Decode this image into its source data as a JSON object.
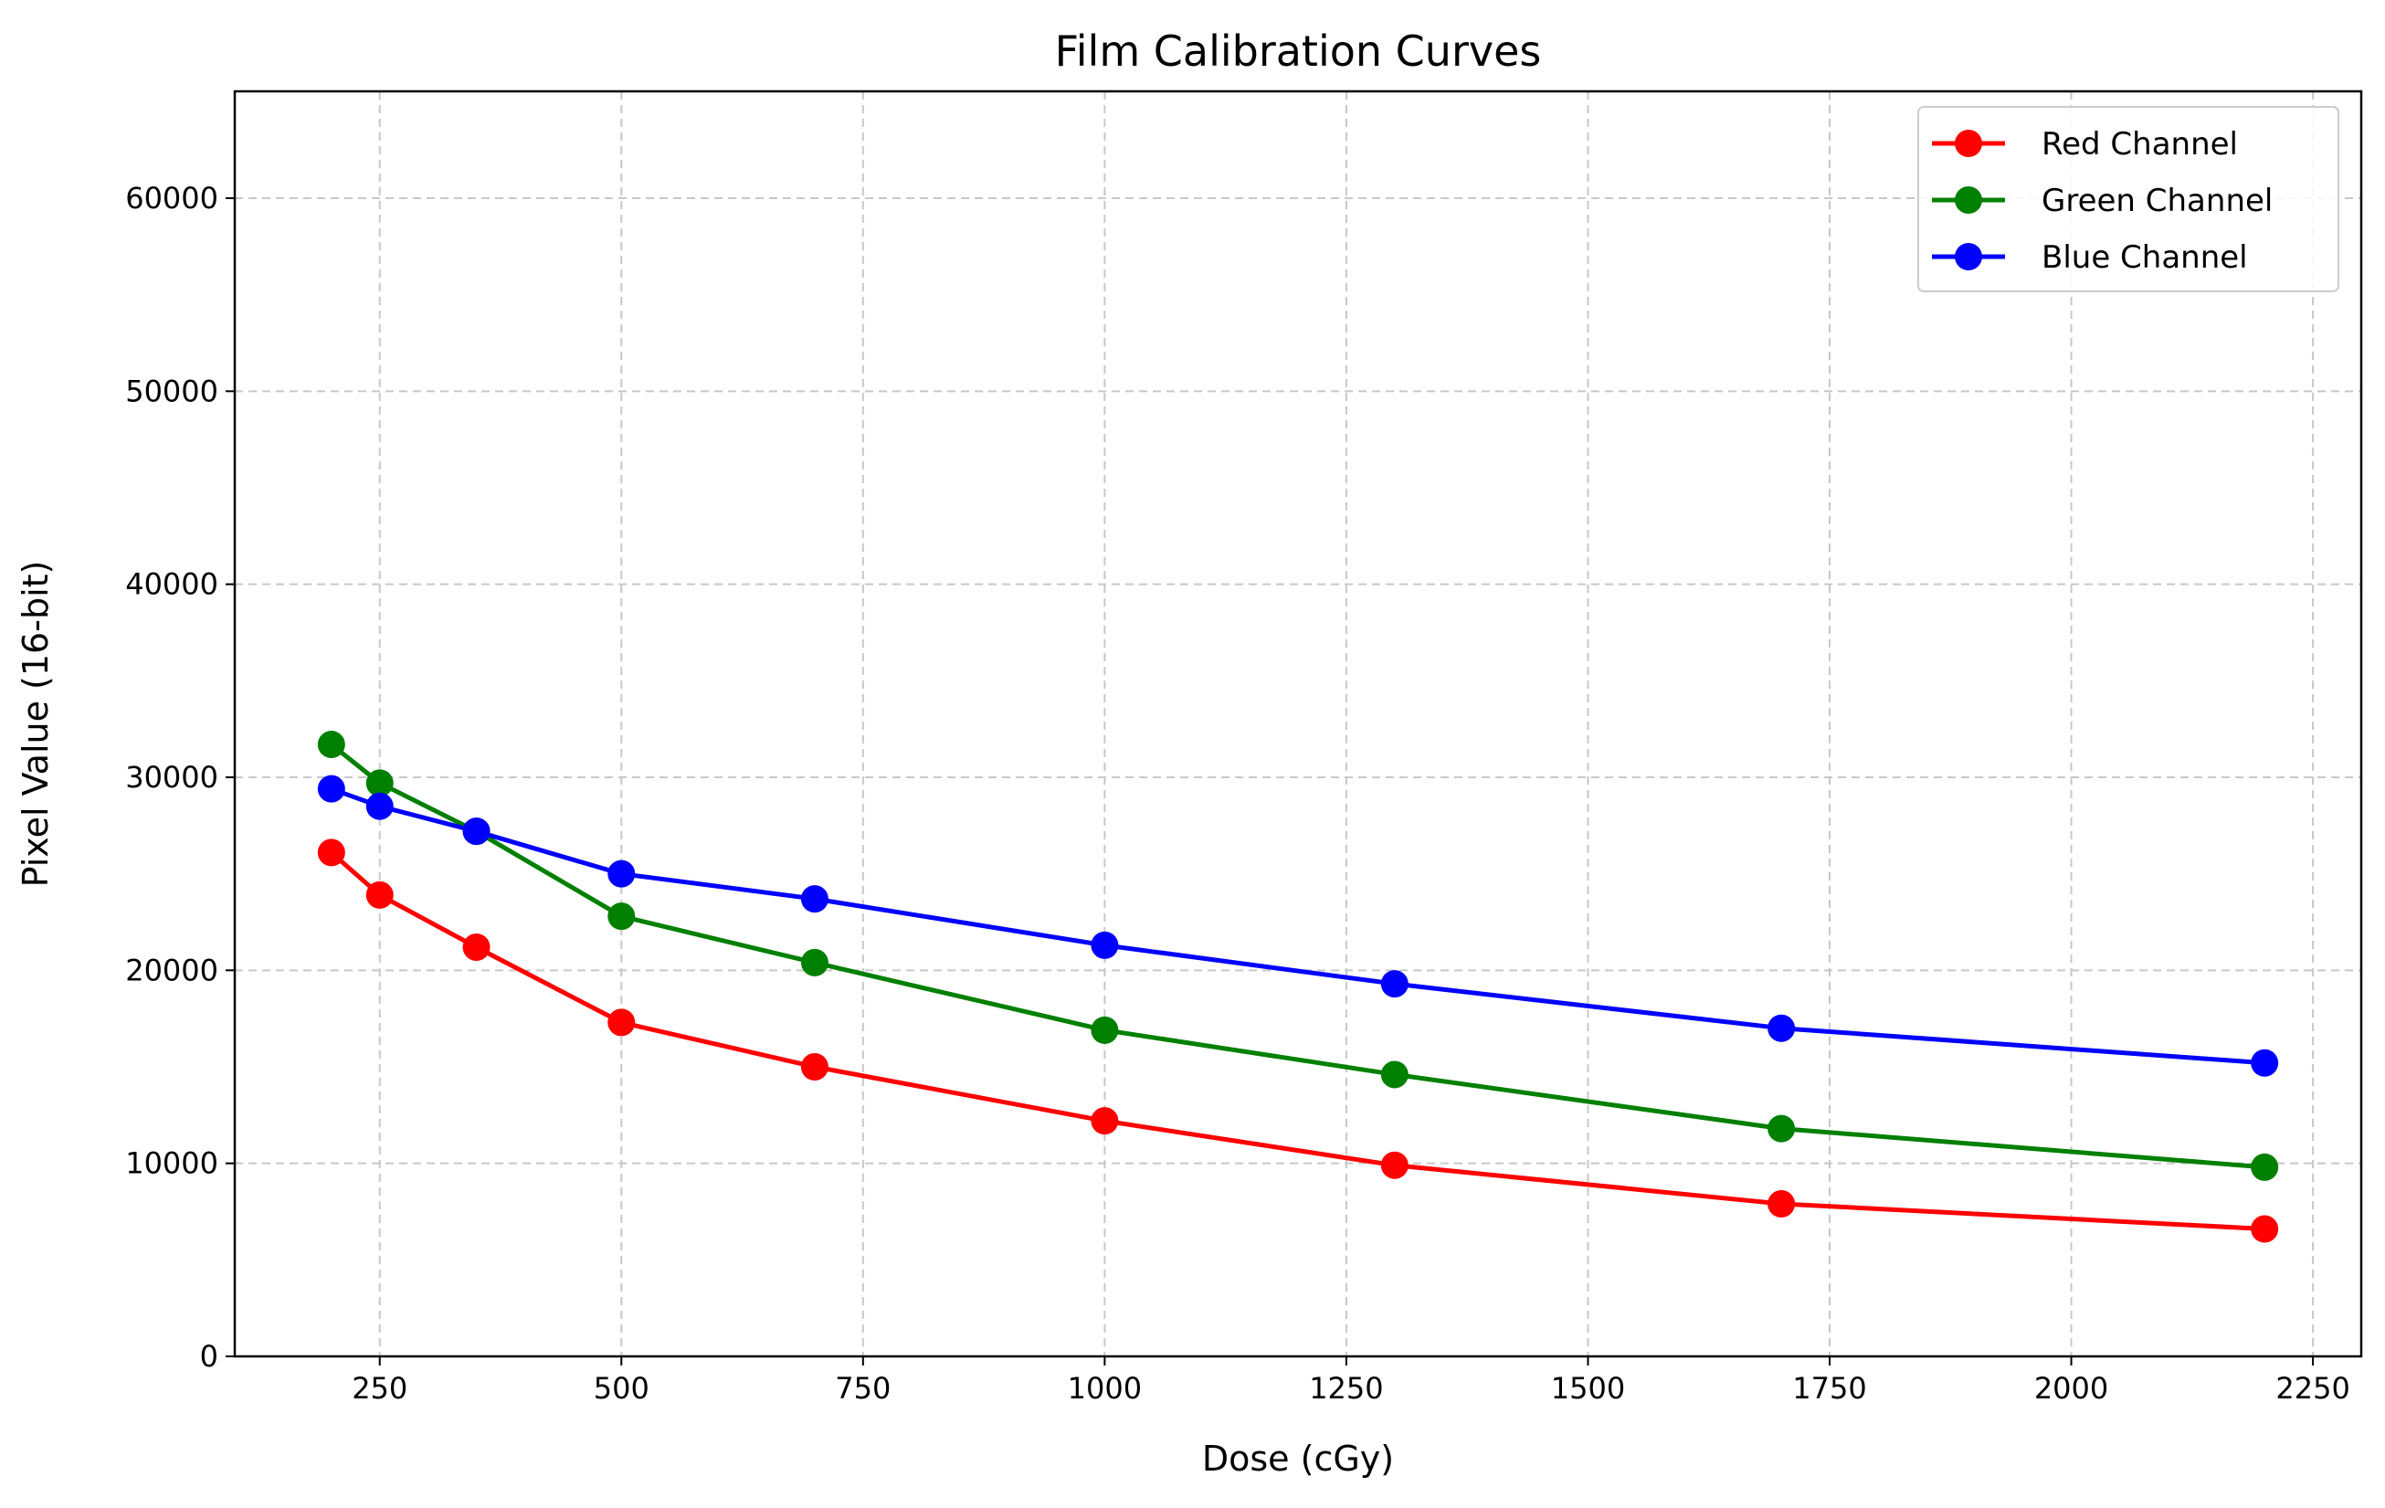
{
  "chart_data": {
    "type": "line",
    "title": "Film Calibration Curves",
    "xlabel": "Dose (cGy)",
    "ylabel": "Pixel Value (16-bit)",
    "xlim": [
      100,
      2300
    ],
    "ylim": [
      0,
      65535
    ],
    "xticks": [
      250,
      500,
      750,
      1000,
      1250,
      1500,
      1750,
      2000,
      2250
    ],
    "yticks": [
      0,
      10000,
      20000,
      30000,
      40000,
      50000,
      60000
    ],
    "grid": true,
    "legend_position": "top-right",
    "x": [
      200,
      250,
      350,
      500,
      700,
      1000,
      1300,
      1700,
      2200
    ],
    "series": [
      {
        "name": "Red Channel",
        "color": "#ff0000",
        "values": [
          26100,
          23900,
          21200,
          17300,
          15000,
          12200,
          9900,
          7900,
          6600
        ]
      },
      {
        "name": "Green Channel",
        "color": "#008000",
        "values": [
          31700,
          29700,
          27200,
          22800,
          20400,
          16900,
          14600,
          11800,
          9800
        ]
      },
      {
        "name": "Blue Channel",
        "color": "#0000ff",
        "values": [
          29400,
          28500,
          27200,
          25000,
          23700,
          21300,
          19300,
          17000,
          15200
        ]
      }
    ]
  }
}
